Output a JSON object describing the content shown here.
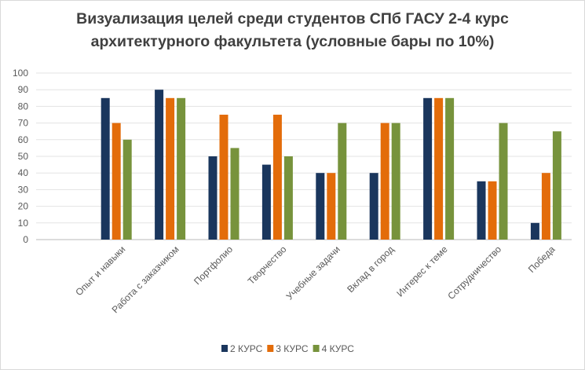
{
  "chart_data": {
    "type": "bar",
    "title_line1": "Визуализация целей среди студентов СПб ГАСУ 2-4 курс",
    "title_line2": "архитектурного факультета (условные бары по 10%)",
    "categories": [
      "Опыт и навыки",
      "Работа с заказчиком",
      "Портфолио",
      "Творчество",
      "Учебные задачи",
      "Вклад в город",
      "Интерес к теме",
      "Сотрудничество",
      "Победа"
    ],
    "series": [
      {
        "name": "2 КУРС",
        "color": "#1a365d",
        "values": [
          85,
          90,
          50,
          45,
          40,
          40,
          85,
          35,
          10
        ]
      },
      {
        "name": "3 КУРС",
        "color": "#e36c0a",
        "values": [
          70,
          85,
          75,
          75,
          40,
          70,
          85,
          35,
          40
        ]
      },
      {
        "name": "4 КУРС",
        "color": "#77933c",
        "values": [
          60,
          85,
          55,
          50,
          70,
          70,
          85,
          70,
          65
        ]
      }
    ],
    "ylim": [
      0,
      100
    ],
    "yticks": [
      0,
      10,
      20,
      30,
      40,
      50,
      60,
      70,
      80,
      90,
      100
    ],
    "grid": true,
    "legend_position": "bottom"
  }
}
